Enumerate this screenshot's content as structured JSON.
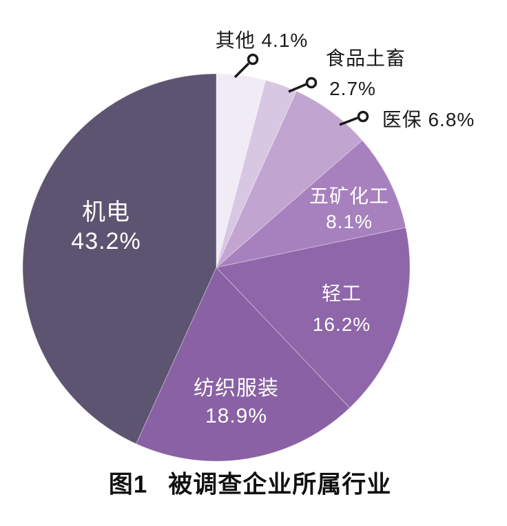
{
  "figure": {
    "title_prefix": "图1",
    "title": "被调查企业所属行业"
  },
  "chart_data": {
    "type": "pie",
    "title": "图1 被调查企业所属行业",
    "start_angle_deg": 0,
    "direction": "clockwise",
    "background": "#ffffff",
    "legend_position": "none",
    "label_color_inside": "#ffffff",
    "label_color_outside": "#1a1a1a",
    "leader_line_color": "#1a1a1a",
    "slices": [
      {
        "label": "其他",
        "value": 4.1,
        "display": "4.1%",
        "color": "#f1ebf5",
        "label_position": "outside"
      },
      {
        "label": "食品土畜",
        "value": 2.7,
        "display": "2.7%",
        "color": "#d8c7e3",
        "label_position": "outside"
      },
      {
        "label": "医保",
        "value": 6.8,
        "display": "6.8%",
        "color": "#c1a4cf",
        "label_position": "outside"
      },
      {
        "label": "五矿化工",
        "value": 8.1,
        "display": "8.1%",
        "color": "#a781bd",
        "label_position": "inside"
      },
      {
        "label": "轻工",
        "value": 16.2,
        "display": "16.2%",
        "color": "#8e66a9",
        "label_position": "inside"
      },
      {
        "label": "纺织服装",
        "value": 18.9,
        "display": "18.9%",
        "color": "#8961a4",
        "label_position": "inside"
      },
      {
        "label": "机电",
        "value": 43.2,
        "display": "43.2%",
        "color": "#5c5470",
        "label_position": "inside"
      }
    ]
  }
}
